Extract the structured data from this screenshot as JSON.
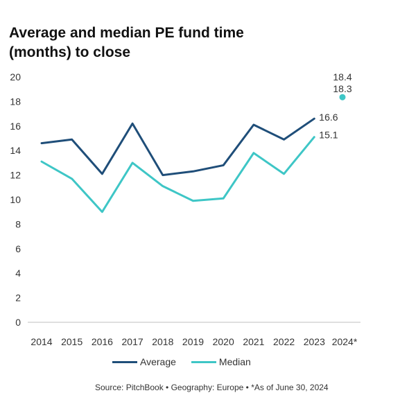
{
  "title": "Average and median PE fund time (months) to close",
  "source": "Source: PitchBook  •  Geography: Europe  •  *As of June 30, 2024",
  "colors": {
    "average": "#1f4e79",
    "median": "#3ec6c6",
    "axis": "#bfbfbf"
  },
  "chart_data": {
    "type": "line",
    "title": "Average and median PE fund time (months) to close",
    "categories": [
      "2014",
      "2015",
      "2016",
      "2017",
      "2018",
      "2019",
      "2020",
      "2021",
      "2022",
      "2023",
      "2024*"
    ],
    "ylim": [
      0,
      20
    ],
    "yticks": [
      0,
      2,
      4,
      6,
      8,
      10,
      12,
      14,
      16,
      18,
      20
    ],
    "grid": false,
    "legend": "bottom",
    "series": [
      {
        "name": "Average",
        "values": [
          14.6,
          14.9,
          12.1,
          16.2,
          12.0,
          12.3,
          12.8,
          16.1,
          14.9,
          16.6,
          18.4
        ]
      },
      {
        "name": "Median",
        "values": [
          13.1,
          11.7,
          9.0,
          13.0,
          11.1,
          9.9,
          10.1,
          13.8,
          12.1,
          15.1,
          18.3
        ]
      }
    ],
    "data_labels": {
      "average_2023": "16.6",
      "median_2023": "15.1",
      "average_2024": "18.4",
      "median_2024": "18.3"
    }
  }
}
